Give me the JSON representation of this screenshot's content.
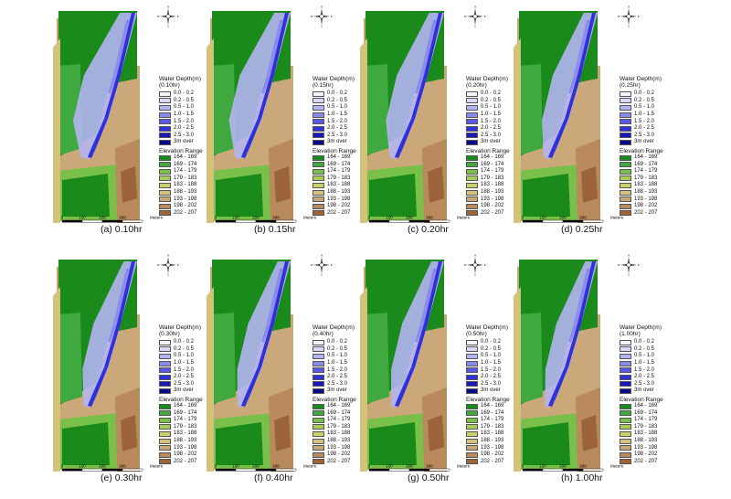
{
  "colors": {
    "water": [
      "#f2f2ff",
      "#d8d8fb",
      "#b4b4f2",
      "#8c8cf0",
      "#5a5af2",
      "#3030dc",
      "#1818b4",
      "#0a0a88",
      "#000055"
    ],
    "elevation": [
      "#1a8a1a",
      "#3fa83f",
      "#78c04a",
      "#a8cc5c",
      "#cad06c",
      "#d4c27a",
      "#caa87a",
      "#b88a5c",
      "#9c6438"
    ]
  },
  "legend": {
    "water_title": "Water Depth(m)",
    "water_classes": [
      "0.0 - 0.2",
      "0.2 - 0.5",
      "0.5 - 1.0",
      "1.0 - 1.5",
      "1.5 - 2.0",
      "2.0 - 2.5",
      "2.5 - 3.0",
      "3m over"
    ],
    "elevation_title": "Elevation Range",
    "elevation_classes": [
      "164 - 169",
      "169 - 174",
      "174 - 179",
      "179 - 183",
      "183 - 188",
      "188 - 193",
      "193 - 198",
      "198 - 202",
      "202 - 207"
    ]
  },
  "scale": {
    "ticks": [
      "0",
      "100",
      "200",
      "300"
    ],
    "unit": "Meters"
  },
  "compass": {
    "n": "N",
    "s": "S",
    "e": "E",
    "w": "W"
  },
  "panels": [
    {
      "id": "a",
      "time_label": "(0.10hr)",
      "caption": "(a) 0.10hr",
      "flood_extent": 0.85
    },
    {
      "id": "b",
      "time_label": "(0.15hr)",
      "caption": "(b) 0.15hr",
      "flood_extent": 0.75
    },
    {
      "id": "c",
      "time_label": "(0.20hr)",
      "caption": "(c) 0.20hr",
      "flood_extent": 0.6
    },
    {
      "id": "d",
      "time_label": "(0.25hr)",
      "caption": "(d) 0.25hr",
      "flood_extent": 0.5
    },
    {
      "id": "e",
      "time_label": "(0.30hr)",
      "caption": "(e) 0.30hr",
      "flood_extent": 0.45
    },
    {
      "id": "f",
      "time_label": "(0.40hr)",
      "caption": "(f) 0.40hr",
      "flood_extent": 0.4
    },
    {
      "id": "g",
      "time_label": "(0.50hr)",
      "caption": "(g) 0.50hr",
      "flood_extent": 0.38
    },
    {
      "id": "h",
      "time_label": "(1.00hr)",
      "caption": "(h) 1.00hr",
      "flood_extent": 0.35
    }
  ]
}
